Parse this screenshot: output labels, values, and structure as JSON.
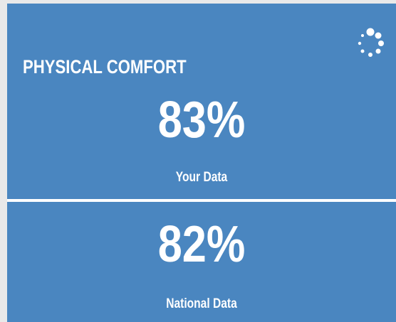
{
  "title": "PHYSICAL COMFORT",
  "panels": [
    {
      "value": "83%",
      "label": "Your Data"
    },
    {
      "value": "82%",
      "label": "National Data"
    }
  ]
}
